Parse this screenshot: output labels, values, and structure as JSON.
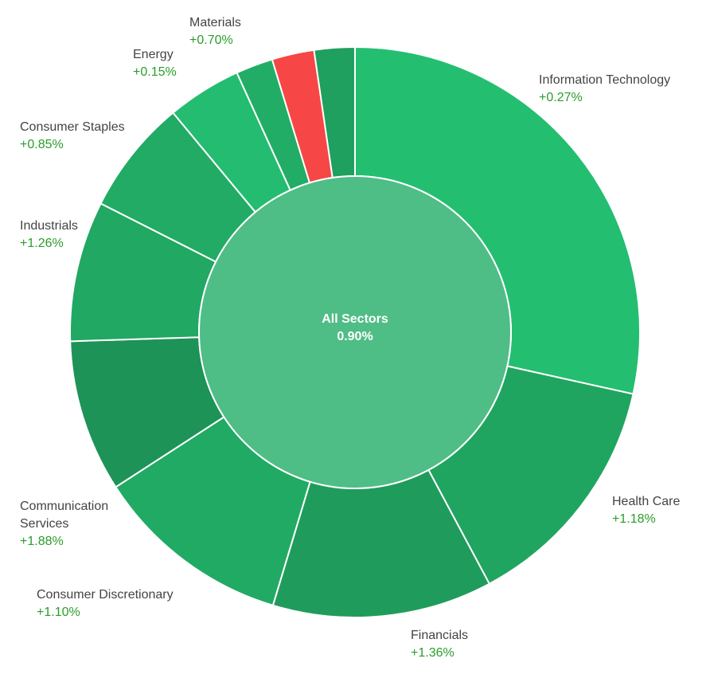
{
  "chart_data": {
    "type": "pie",
    "variant": "sunburst-donut",
    "center": {
      "label": "All Sectors",
      "value": "0.90%"
    },
    "slices": [
      {
        "name": "Information Technology",
        "change": "+0.27%",
        "value": 29.7,
        "color": "#24be71"
      },
      {
        "name": "Health Care",
        "change": "+1.18%",
        "value": 14.3,
        "color": "#20a560"
      },
      {
        "name": "Financials",
        "change": "+1.36%",
        "value": 13.0,
        "color": "#1f9c5b"
      },
      {
        "name": "Consumer Discretionary",
        "change": "+1.10%",
        "value": 11.7,
        "color": "#21aa63"
      },
      {
        "name": "Communication Services",
        "change": "+1.88%",
        "value": 9.0,
        "color": "#1d9357"
      },
      {
        "name": "Industrials",
        "change": "+1.26%",
        "value": 8.3,
        "color": "#21a862"
      },
      {
        "name": "Consumer Staples",
        "change": "+0.85%",
        "value": 6.8,
        "color": "#21ab64"
      },
      {
        "name": "Energy",
        "change": "+0.15%",
        "value": 4.4,
        "color": "#24bc70"
      },
      {
        "name": "",
        "change": "",
        "value": 2.2,
        "color": "#22ad66"
      },
      {
        "name": "Materials",
        "change": "+0.70%",
        "value": 2.5,
        "color": "#f64646"
      },
      {
        "name": "",
        "change": "",
        "value": 2.4,
        "color": "#1fa05e"
      }
    ],
    "inner_color": "#4fbd86",
    "separator_color": "#ffffff"
  }
}
